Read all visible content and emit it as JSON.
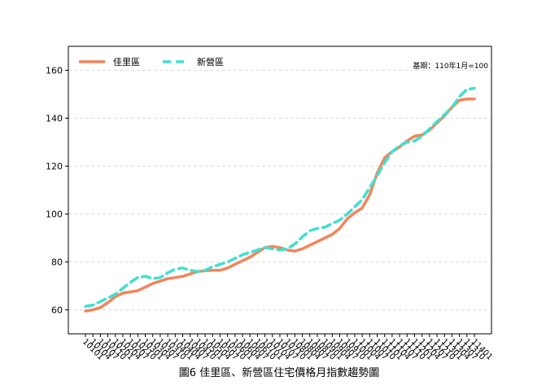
{
  "chart_data": {
    "type": "line",
    "title": "圖6 佳里區、新營區住宅價格月指數趨勢圖",
    "annotation": "基期：110年1月=100",
    "categories": [
      "10101",
      "10104",
      "10107",
      "10110",
      "10201",
      "10204",
      "10207",
      "10210",
      "10301",
      "10304",
      "10307",
      "10310",
      "10401",
      "10404",
      "10407",
      "10410",
      "10501",
      "10504",
      "10507",
      "10510",
      "10601",
      "10604",
      "10607",
      "10610",
      "10701",
      "10704",
      "10707",
      "10710",
      "10801",
      "10804",
      "10807",
      "10810",
      "10901",
      "10904",
      "10907",
      "10910",
      "11001",
      "11004",
      "11007",
      "11010",
      "11101",
      "11104",
      "11107",
      "11110",
      "11201",
      "11204",
      "11207",
      "11210",
      "11301",
      "11304",
      "11307",
      "11310",
      "11401"
    ],
    "series": [
      {
        "name": "佳里區",
        "color": "#f4845a",
        "dash": false,
        "values": [
          59.5,
          60,
          61,
          63,
          65.5,
          67,
          67.5,
          68,
          69.5,
          71,
          72,
          73,
          73.5,
          74,
          75,
          76,
          76.3,
          76.5,
          76.5,
          77.5,
          79,
          80.5,
          82,
          84,
          86,
          86.5,
          86,
          85,
          84.5,
          85.5,
          87,
          88.5,
          90,
          91.5,
          94,
          98,
          100.5,
          102.5,
          108,
          117,
          123.5,
          126,
          128,
          130.5,
          132.5,
          133,
          135,
          138,
          141,
          144.5,
          147.5,
          148,
          148
        ]
      },
      {
        "name": "新營區",
        "color": "#40e0d0",
        "dash": true,
        "values": [
          61.5,
          62,
          63.5,
          65,
          66.5,
          69,
          71.5,
          73.5,
          74,
          73,
          73.5,
          75.5,
          77,
          77.5,
          76.5,
          76,
          76.5,
          78,
          79,
          80,
          81.5,
          83,
          84,
          85,
          86,
          85.5,
          85,
          85.5,
          87.5,
          90.5,
          93,
          94,
          94.5,
          96,
          97.5,
          100,
          103,
          106,
          111,
          116,
          121.5,
          126,
          128.5,
          130,
          130.5,
          132.5,
          135.5,
          138.5,
          141.5,
          144.5,
          149,
          152,
          152.5
        ]
      }
    ],
    "ylim": [
      50,
      170
    ],
    "yticks": [
      60,
      80,
      100,
      120,
      140,
      160
    ],
    "grid": true,
    "legend": "upper left"
  }
}
